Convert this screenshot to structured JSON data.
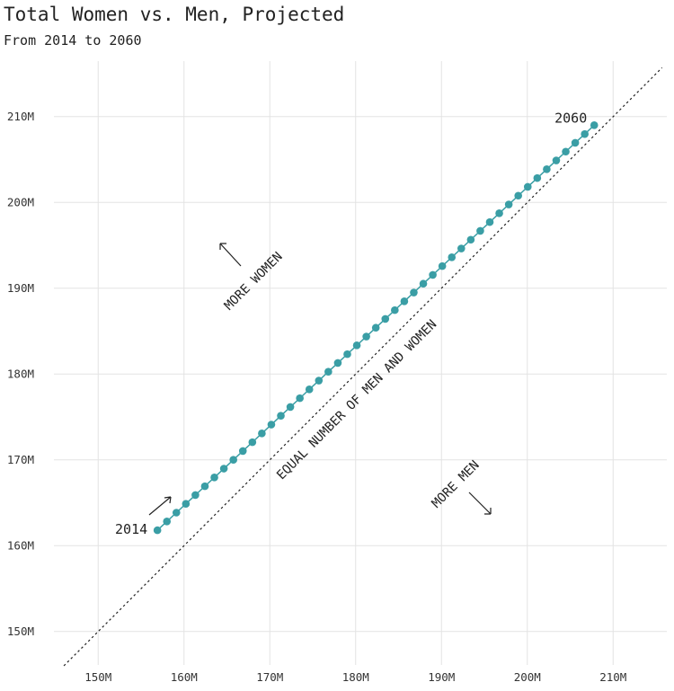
{
  "title": "Total Women vs. Men, Projected",
  "subtitle": "From 2014 to 2060",
  "chart_data": {
    "type": "scatter",
    "x_ticks": [
      "150M",
      "160M",
      "170M",
      "180M",
      "190M",
      "200M",
      "210M"
    ],
    "y_ticks": [
      "150M",
      "160M",
      "170M",
      "180M",
      "190M",
      "200M",
      "210M"
    ],
    "xlim": [
      145,
      216
    ],
    "ylim": [
      146,
      216
    ],
    "grid": true,
    "point_color": "#3a9ea5",
    "series": [
      {
        "start": {
          "x": 156.9,
          "y": 161.8,
          "label": "2014"
        },
        "end": {
          "x": 207.8,
          "y": 209.0,
          "label": "2060"
        },
        "count": 47
      }
    ],
    "reference_line": {
      "label": "EQUAL NUMBER OF MEN AND WOMEN",
      "slope": 1,
      "intercept": 0,
      "style": "dotted"
    },
    "annotations": [
      {
        "text": "MORE WOMEN",
        "direction": "up-left"
      },
      {
        "text": "MORE MEN",
        "direction": "down-right"
      }
    ]
  }
}
